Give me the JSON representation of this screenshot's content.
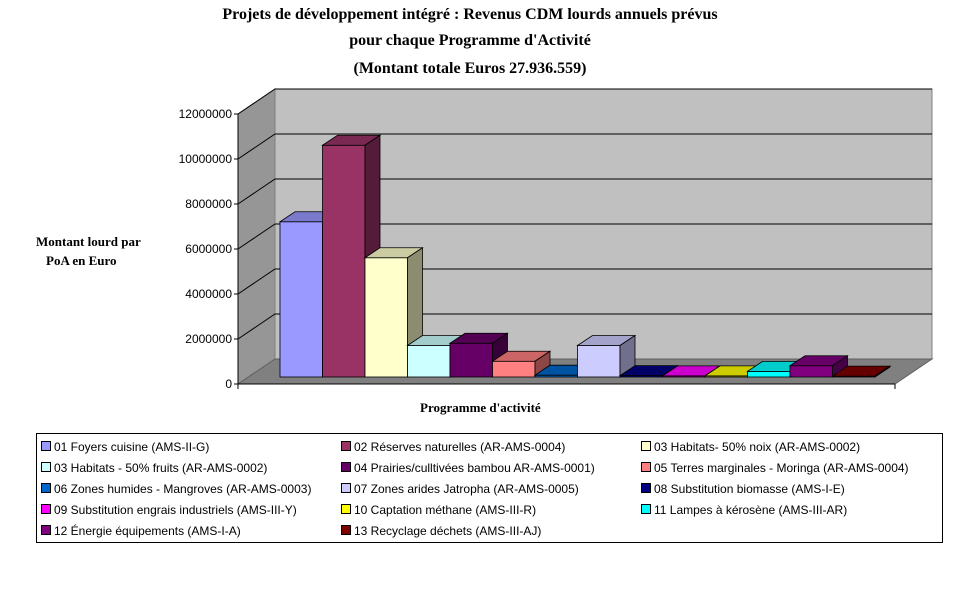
{
  "chart_data": {
    "type": "bar",
    "title_lines": [
      "Projets de développement intégré : Revenus CDM lourds annuels prévus",
      "pour chaque Programme d'Activité",
      "(Montant totale Euros 27.936.559)"
    ],
    "ylabel_lines": [
      "Montant lourd par",
      "PoA en Euro"
    ],
    "xlabel": "Programme d'activité",
    "ylim": [
      0,
      12000000
    ],
    "yticks": [
      "0",
      "2000000",
      "4000000",
      "6000000",
      "8000000",
      "10000000",
      "12000000"
    ],
    "ytick_values": [
      0,
      2000000,
      4000000,
      6000000,
      8000000,
      10000000,
      12000000
    ],
    "grid": true,
    "legend_position": "bottom",
    "series": [
      {
        "name": "01 Foyers cuisine  (AMS-II-G)",
        "value": 6900000,
        "color": "#9999ff"
      },
      {
        "name": "02 Réserves naturelles (AR-AMS-0004)",
        "value": 10300000,
        "color": "#993366"
      },
      {
        "name": "03 Habitats- 50% noix (AR-AMS-0002)",
        "value": 5300000,
        "color": "#ffffcc"
      },
      {
        "name": "03 Habitats - 50% fruits  (AR-AMS-0002)",
        "value": 1400000,
        "color": "#ccffff"
      },
      {
        "name": "04 Prairies/culltivées bambou  AR-AMS-0001)",
        "value": 1500000,
        "color": "#660066"
      },
      {
        "name": "05 Terres marginales - Moringa (AR-AMS-0004)",
        "value": 700000,
        "color": "#ff8080"
      },
      {
        "name": "06 Zones humides - Mangroves (AR-AMS-0003)",
        "value": 80000,
        "color": "#0066cc"
      },
      {
        "name": "07 Zones arides Jatropha (AR-AMS-0005)",
        "value": 1400000,
        "color": "#ccccff"
      },
      {
        "name": "08  Substitution biomasse (AMS-I-E)",
        "value": 60000,
        "color": "#000080"
      },
      {
        "name": "09 Substitution engrais industriels (AMS-III-Y)",
        "value": 50000,
        "color": "#ff00ff"
      },
      {
        "name": "10 Captation méthane (AMS-III-R)",
        "value": 50000,
        "color": "#ffff00"
      },
      {
        "name": "11  Lampes à kérosène (AMS-III-AR)",
        "value": 250000,
        "color": "#00ffff"
      },
      {
        "name": "12 Énergie équipements  (AMS-I-A)",
        "value": 500000,
        "color": "#800080"
      },
      {
        "name": "13 Recyclage déchets (AMS-III-AJ)",
        "value": 40000,
        "color": "#800000"
      }
    ]
  }
}
